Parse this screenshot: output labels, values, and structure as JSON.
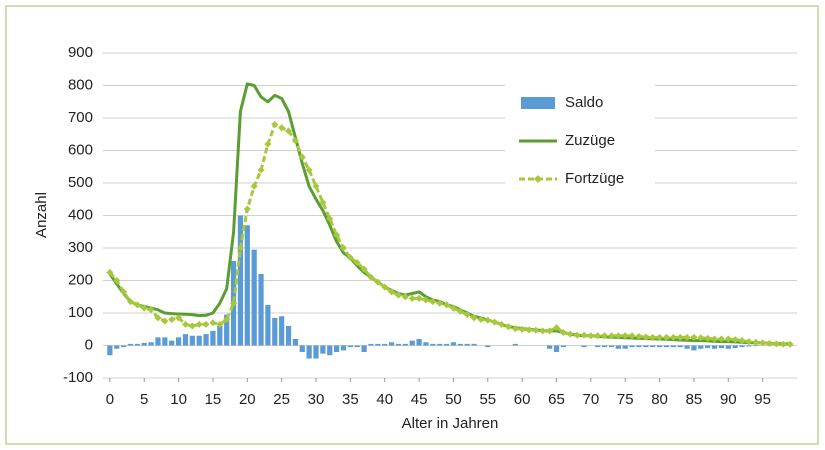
{
  "chart_data": {
    "type": "combo",
    "xlabel": "Alter in Jahren",
    "ylabel": "Anzahl",
    "x": [
      0,
      1,
      2,
      3,
      4,
      5,
      6,
      7,
      8,
      9,
      10,
      11,
      12,
      13,
      14,
      15,
      16,
      17,
      18,
      19,
      20,
      21,
      22,
      23,
      24,
      25,
      26,
      27,
      28,
      29,
      30,
      31,
      32,
      33,
      34,
      35,
      36,
      37,
      38,
      39,
      40,
      41,
      42,
      43,
      44,
      45,
      46,
      47,
      48,
      49,
      50,
      51,
      52,
      53,
      54,
      55,
      56,
      57,
      58,
      59,
      60,
      61,
      62,
      63,
      64,
      65,
      66,
      67,
      68,
      69,
      70,
      71,
      72,
      73,
      74,
      75,
      76,
      77,
      78,
      79,
      80,
      81,
      82,
      83,
      84,
      85,
      86,
      87,
      88,
      89,
      90,
      91,
      92,
      93,
      94,
      95,
      96,
      97,
      98,
      99
    ],
    "xlim": [
      -1,
      100
    ],
    "xticks": [
      0,
      5,
      10,
      15,
      20,
      25,
      30,
      35,
      40,
      45,
      50,
      55,
      60,
      65,
      70,
      75,
      80,
      85,
      90,
      95
    ],
    "ylim": [
      -100,
      900
    ],
    "yticks": [
      -100,
      0,
      100,
      200,
      300,
      400,
      500,
      600,
      700,
      800,
      900
    ],
    "grid": true,
    "legend": "upper right",
    "series": [
      {
        "name": "Saldo",
        "type": "bar",
        "color": "#5b9bd5",
        "values": [
          -30,
          -10,
          -5,
          5,
          5,
          8,
          10,
          25,
          25,
          15,
          25,
          35,
          30,
          30,
          35,
          45,
          60,
          95,
          260,
          400,
          370,
          295,
          220,
          125,
          85,
          90,
          60,
          20,
          -20,
          -40,
          -40,
          -25,
          -30,
          -20,
          -15,
          -5,
          -5,
          -20,
          5,
          5,
          5,
          10,
          5,
          5,
          15,
          20,
          10,
          5,
          5,
          5,
          10,
          5,
          5,
          5,
          0,
          -5,
          0,
          0,
          0,
          5,
          0,
          0,
          0,
          0,
          -10,
          -20,
          -5,
          0,
          0,
          -5,
          0,
          -5,
          -5,
          -5,
          -10,
          -10,
          -5,
          -5,
          -5,
          -5,
          -5,
          -5,
          -5,
          -5,
          -10,
          -15,
          -10,
          -8,
          -10,
          -8,
          -10,
          -8,
          -5,
          -3,
          -2,
          0,
          1,
          1,
          1,
          1
        ]
      },
      {
        "name": "Zuzüge",
        "type": "line",
        "color": "#5a9e32",
        "values": [
          220,
          190,
          160,
          135,
          125,
          120,
          115,
          110,
          100,
          98,
          97,
          96,
          95,
          92,
          93,
          100,
          130,
          175,
          350,
          720,
          805,
          800,
          765,
          750,
          770,
          760,
          720,
          640,
          560,
          490,
          450,
          415,
          370,
          320,
          285,
          270,
          245,
          225,
          210,
          195,
          180,
          170,
          160,
          155,
          160,
          165,
          150,
          140,
          135,
          125,
          120,
          110,
          100,
          90,
          85,
          78,
          72,
          65,
          58,
          55,
          52,
          50,
          48,
          46,
          45,
          45,
          40,
          35,
          32,
          30,
          30,
          28,
          27,
          26,
          25,
          24,
          23,
          22,
          22,
          21,
          20,
          19,
          18,
          17,
          16,
          15,
          15,
          14,
          13,
          12,
          12,
          11,
          10,
          9,
          8,
          8,
          7,
          6,
          5,
          5
        ]
      },
      {
        "name": "Fortzüge",
        "type": "line",
        "color": "#a8c83c",
        "dashed": true,
        "marker": "diamond",
        "values": [
          225,
          200,
          165,
          135,
          125,
          115,
          110,
          85,
          75,
          80,
          85,
          65,
          60,
          65,
          65,
          70,
          65,
          80,
          130,
          300,
          420,
          490,
          540,
          620,
          680,
          670,
          660,
          630,
          580,
          540,
          490,
          440,
          390,
          340,
          300,
          270,
          255,
          235,
          210,
          195,
          180,
          165,
          155,
          150,
          145,
          145,
          140,
          135,
          130,
          125,
          115,
          105,
          95,
          85,
          80,
          78,
          72,
          65,
          58,
          52,
          50,
          48,
          47,
          45,
          45,
          55,
          40,
          35,
          32,
          32,
          30,
          30,
          30,
          30,
          30,
          30,
          30,
          28,
          26,
          25,
          25,
          25,
          25,
          25,
          25,
          25,
          24,
          22,
          20,
          20,
          20,
          18,
          15,
          12,
          10,
          8,
          6,
          5,
          4,
          4
        ]
      }
    ]
  }
}
